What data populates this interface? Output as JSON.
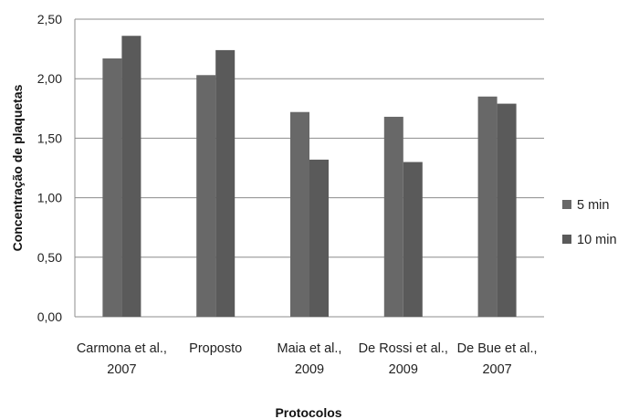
{
  "chart_data": {
    "type": "bar",
    "title": "",
    "xlabel": "Protocolos",
    "ylabel": "Concentração de plaquetas",
    "ylim": [
      0,
      2.5
    ],
    "yticks": [
      "0,00",
      "0,50",
      "1,00",
      "1,50",
      "2,00",
      "2,50"
    ],
    "categories": [
      [
        "Carmona et al.,",
        "2007"
      ],
      [
        "Proposto"
      ],
      [
        "Maia et al.,",
        "2009"
      ],
      [
        "De Rossi et al.,",
        "2009"
      ],
      [
        "De Bue et al.,",
        "2007"
      ]
    ],
    "series": [
      {
        "name": "5 min",
        "color": "#686868",
        "values": [
          2.17,
          2.03,
          1.72,
          1.68,
          1.85
        ]
      },
      {
        "name": "10 min",
        "color": "#5a5a5a",
        "values": [
          2.36,
          2.24,
          1.32,
          1.3,
          1.79
        ]
      }
    ],
    "grid": true,
    "legend_position": "right"
  }
}
